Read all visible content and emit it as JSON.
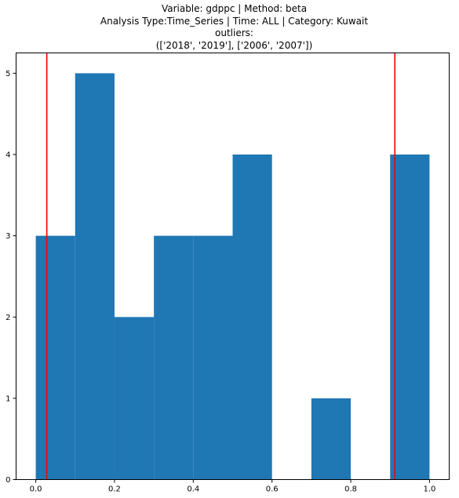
{
  "title_lines": [
    "Variable: gdppc | Method: beta",
    "Analysis Type:Time_Series | Time: ALL | Category: Kuwait",
    "outliers:",
    "(['2018', '2019'], ['2006', '2007'])"
  ],
  "chart_data": {
    "type": "bar",
    "title": "Variable: gdppc | Method: beta\nAnalysis Type:Time_Series | Time: ALL | Category: Kuwait\noutliers:\n(['2018', '2019'], ['2006', '2007'])",
    "xlabel": "",
    "ylabel": "",
    "bin_edges": [
      0.0,
      0.1,
      0.2,
      0.3,
      0.4,
      0.5,
      0.6,
      0.7,
      0.8,
      0.9,
      1.0
    ],
    "values": [
      3,
      5,
      2,
      3,
      3,
      4,
      0,
      1,
      0,
      4
    ],
    "xlim": [
      -0.05,
      1.05
    ],
    "ylim": [
      0,
      5.25
    ],
    "xticks": [
      0.0,
      0.2,
      0.4,
      0.6,
      0.8,
      1.0
    ],
    "xtick_labels": [
      "0.0",
      "0.2",
      "0.4",
      "0.6",
      "0.8",
      "1.0"
    ],
    "yticks": [
      0,
      1,
      2,
      3,
      4,
      5
    ],
    "ytick_labels": [
      "0",
      "1",
      "2",
      "3",
      "4",
      "5"
    ],
    "vlines": [
      0.028,
      0.912
    ],
    "colors": {
      "bars": "#1f77b4",
      "vlines": "#ff0000"
    },
    "grid": false
  }
}
